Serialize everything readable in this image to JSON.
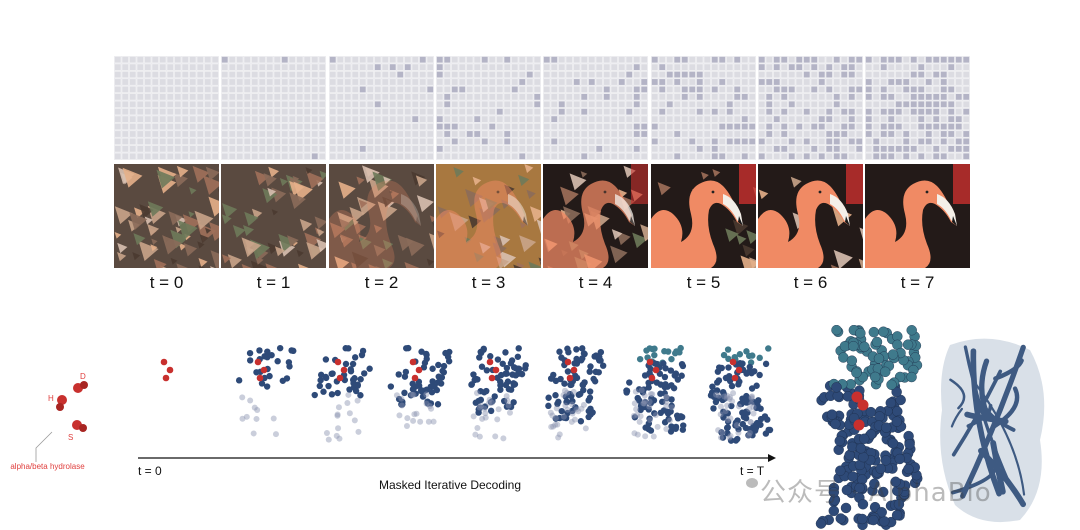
{
  "timesteps": [
    "t = 0",
    "t = 1",
    "t = 2",
    "t = 3",
    "t = 4",
    "t = 5",
    "t = 6",
    "t = 7"
  ],
  "mask_revealed_fraction": [
    0.0,
    0.01,
    0.05,
    0.1,
    0.18,
    0.28,
    0.4,
    0.55
  ],
  "colors": {
    "mask_bg": "#e6e6ea",
    "mask_revealed": "#b4b4c6",
    "residue": "#c8302e",
    "protein_blue": "#2e4a78",
    "protein_teal": "#3f7a8c",
    "label_red": "#e0403f"
  },
  "residues": {
    "letters": [
      "H",
      "D",
      "S"
    ],
    "label": "alpha/beta hydrolase"
  },
  "axis": {
    "start": "t = 0",
    "end": "t = T",
    "title": "Masked Iterative Decoding"
  },
  "watermark": "公众号 · AlphaBio"
}
